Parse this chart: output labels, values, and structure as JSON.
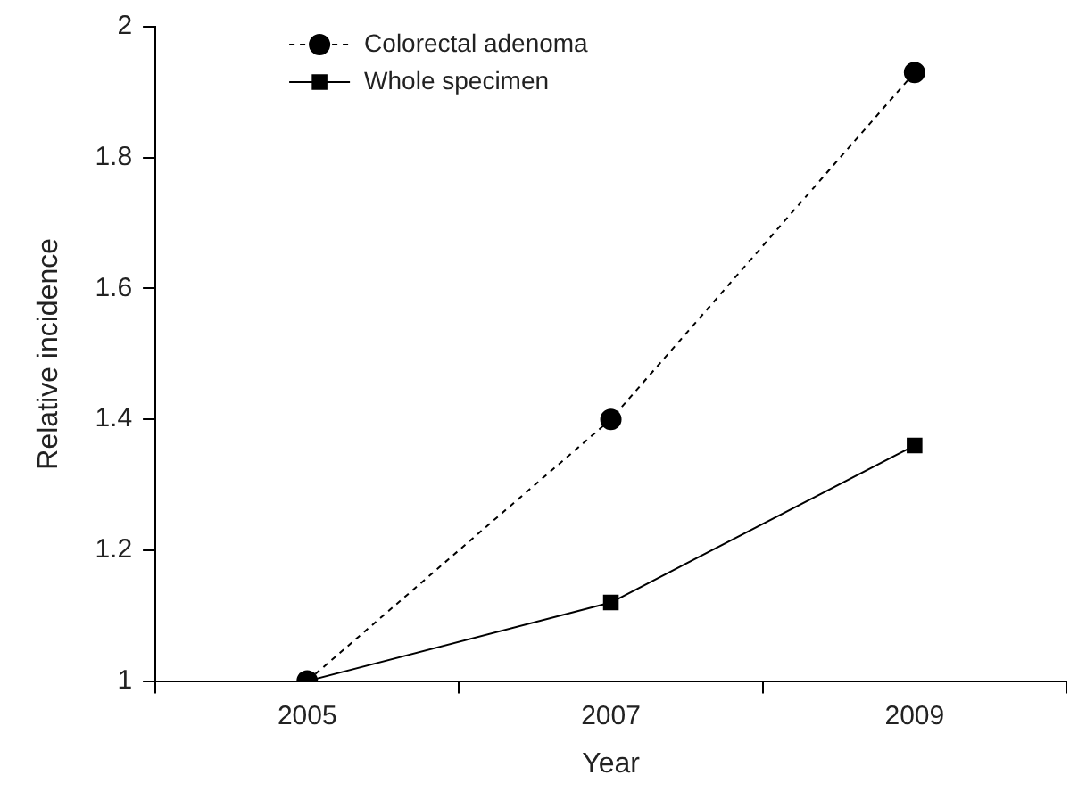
{
  "chart_data": {
    "type": "line",
    "xlabel": "Year",
    "ylabel": "Relative incidence",
    "categories": [
      "2005",
      "2007",
      "2009"
    ],
    "series": [
      {
        "name": "Colorectal adenoma",
        "color": "#000000",
        "values": [
          1,
          1.4,
          1.93
        ],
        "marker": "circle",
        "line_style": "dashed"
      },
      {
        "name": "Whole specimen",
        "color": "#000000",
        "values": [
          1,
          1.12,
          1.36
        ],
        "marker": "square",
        "line_style": "solid"
      }
    ],
    "ylim": [
      1,
      2
    ],
    "yticks": [
      1,
      1.2,
      1.4,
      1.6,
      1.8,
      2
    ],
    "grid": false,
    "legend": "top left"
  }
}
